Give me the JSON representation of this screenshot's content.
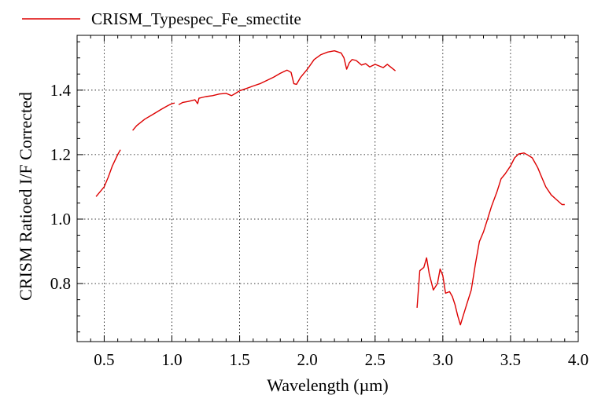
{
  "chart_data": {
    "type": "line",
    "xlabel": "Wavelength (µm)",
    "ylabel": "CRISM Ratioed I/F Corrected",
    "xlim": [
      0.3,
      4.0
    ],
    "ylim": [
      0.62,
      1.57
    ],
    "xticks": [
      0.5,
      1.0,
      1.5,
      2.0,
      2.5,
      3.0,
      3.5,
      4.0
    ],
    "xtick_labels": [
      "0.5",
      "1.0",
      "1.5",
      "2.0",
      "2.5",
      "3.0",
      "3.5",
      "4.0"
    ],
    "yticks": [
      0.8,
      1.0,
      1.2,
      1.4
    ],
    "ytick_labels": [
      "0.8",
      "1.0",
      "1.2",
      "1.4"
    ],
    "grid": true,
    "legend_position": "top-left",
    "line_color": "#dd0000",
    "series": [
      {
        "name": "CRISM_Typespec_Fe_smectite",
        "segments": [
          [
            [
              0.44,
              1.07
            ],
            [
              0.47,
              1.085
            ],
            [
              0.5,
              1.1
            ],
            [
              0.53,
              1.13
            ],
            [
              0.56,
              1.165
            ],
            [
              0.6,
              1.2
            ],
            [
              0.62,
              1.215
            ]
          ],
          [
            [
              0.71,
              1.275
            ],
            [
              0.74,
              1.29
            ],
            [
              0.8,
              1.31
            ],
            [
              0.86,
              1.325
            ],
            [
              0.92,
              1.34
            ],
            [
              0.97,
              1.352
            ],
            [
              1.0,
              1.358
            ],
            [
              1.02,
              1.36
            ]
          ],
          [
            [
              1.05,
              1.355
            ],
            [
              1.08,
              1.362
            ],
            [
              1.12,
              1.365
            ],
            [
              1.17,
              1.37
            ],
            [
              1.19,
              1.358
            ],
            [
              1.2,
              1.375
            ],
            [
              1.25,
              1.38
            ],
            [
              1.3,
              1.383
            ],
            [
              1.35,
              1.388
            ],
            [
              1.4,
              1.39
            ],
            [
              1.44,
              1.383
            ],
            [
              1.47,
              1.39
            ],
            [
              1.5,
              1.398
            ],
            [
              1.55,
              1.405
            ],
            [
              1.6,
              1.413
            ],
            [
              1.65,
              1.42
            ],
            [
              1.7,
              1.43
            ],
            [
              1.75,
              1.44
            ],
            [
              1.8,
              1.452
            ],
            [
              1.85,
              1.462
            ],
            [
              1.88,
              1.455
            ],
            [
              1.9,
              1.42
            ],
            [
              1.92,
              1.418
            ],
            [
              1.95,
              1.44
            ],
            [
              2.0,
              1.465
            ],
            [
              2.05,
              1.495
            ],
            [
              2.1,
              1.51
            ],
            [
              2.15,
              1.518
            ],
            [
              2.2,
              1.522
            ],
            [
              2.25,
              1.515
            ],
            [
              2.27,
              1.5
            ],
            [
              2.29,
              1.465
            ],
            [
              2.31,
              1.485
            ],
            [
              2.33,
              1.495
            ],
            [
              2.36,
              1.492
            ],
            [
              2.4,
              1.478
            ],
            [
              2.43,
              1.482
            ],
            [
              2.46,
              1.472
            ],
            [
              2.5,
              1.48
            ],
            [
              2.53,
              1.475
            ],
            [
              2.56,
              1.47
            ],
            [
              2.59,
              1.48
            ],
            [
              2.62,
              1.47
            ],
            [
              2.65,
              1.46
            ]
          ],
          [
            [
              2.81,
              0.725
            ],
            [
              2.83,
              0.84
            ],
            [
              2.86,
              0.85
            ],
            [
              2.88,
              0.88
            ],
            [
              2.9,
              0.83
            ],
            [
              2.93,
              0.78
            ],
            [
              2.96,
              0.8
            ],
            [
              2.98,
              0.845
            ],
            [
              3.0,
              0.825
            ],
            [
              3.02,
              0.77
            ],
            [
              3.05,
              0.775
            ],
            [
              3.07,
              0.76
            ],
            [
              3.09,
              0.735
            ],
            [
              3.11,
              0.7
            ],
            [
              3.13,
              0.672
            ],
            [
              3.15,
              0.7
            ],
            [
              3.18,
              0.74
            ],
            [
              3.21,
              0.78
            ],
            [
              3.24,
              0.86
            ],
            [
              3.27,
              0.93
            ],
            [
              3.3,
              0.96
            ],
            [
              3.33,
              1.0
            ],
            [
              3.36,
              1.04
            ],
            [
              3.4,
              1.085
            ],
            [
              3.43,
              1.125
            ],
            [
              3.46,
              1.14
            ],
            [
              3.5,
              1.165
            ],
            [
              3.53,
              1.19
            ],
            [
              3.56,
              1.202
            ],
            [
              3.6,
              1.205
            ],
            [
              3.63,
              1.198
            ],
            [
              3.66,
              1.19
            ],
            [
              3.7,
              1.16
            ],
            [
              3.73,
              1.13
            ],
            [
              3.76,
              1.1
            ],
            [
              3.8,
              1.075
            ],
            [
              3.84,
              1.06
            ],
            [
              3.88,
              1.045
            ],
            [
              3.9,
              1.045
            ]
          ]
        ]
      }
    ]
  }
}
